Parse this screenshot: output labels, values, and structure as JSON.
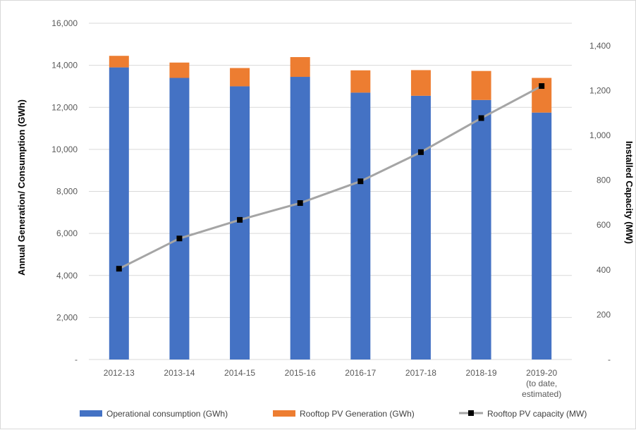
{
  "chart_data": {
    "type": "bar",
    "stacked": true,
    "categories": [
      [
        "2012-13"
      ],
      [
        "2013-14"
      ],
      [
        "2014-15"
      ],
      [
        "2015-16"
      ],
      [
        "2016-17"
      ],
      [
        "2017-18"
      ],
      [
        "2018-19"
      ],
      [
        "2019-20",
        "(to date,",
        "estimated)"
      ]
    ],
    "series": [
      {
        "name": "Operational consumption (GWh)",
        "type": "bar",
        "axis": "left",
        "color": "#4472C4",
        "values": [
          13900,
          13400,
          13000,
          13450,
          12700,
          12550,
          12350,
          11750
        ]
      },
      {
        "name": "Rooftop PV Generation (GWh)",
        "type": "bar",
        "axis": "left",
        "color": "#ED7D31",
        "values": [
          550,
          730,
          870,
          940,
          1060,
          1220,
          1380,
          1650
        ]
      },
      {
        "name": "Rooftop PV capacity (MW)",
        "type": "line",
        "axis": "right",
        "color": "#A5A5A5",
        "marker_color": "#000000",
        "values": [
          405,
          540,
          623,
          698,
          795,
          925,
          1077,
          1220
        ]
      }
    ],
    "y_left": {
      "label": "Annual Generation/ Consumption (GWh)",
      "ylim": [
        0,
        16000
      ],
      "ticks": [
        "-",
        "2,000",
        "4,000",
        "6,000",
        "8,000",
        "10,000",
        "12,000",
        "14,000",
        "16,000"
      ]
    },
    "y_right": {
      "label": "Installed Capacity (MW)",
      "ylim": [
        0,
        1500
      ],
      "ticks": [
        "-",
        "200",
        "400",
        "600",
        "800",
        "1,000",
        "1,200",
        "1,400"
      ],
      "tick_values": [
        0,
        200,
        400,
        600,
        800,
        1000,
        1200,
        1400
      ]
    },
    "grid": true,
    "legend_position": "bottom"
  }
}
